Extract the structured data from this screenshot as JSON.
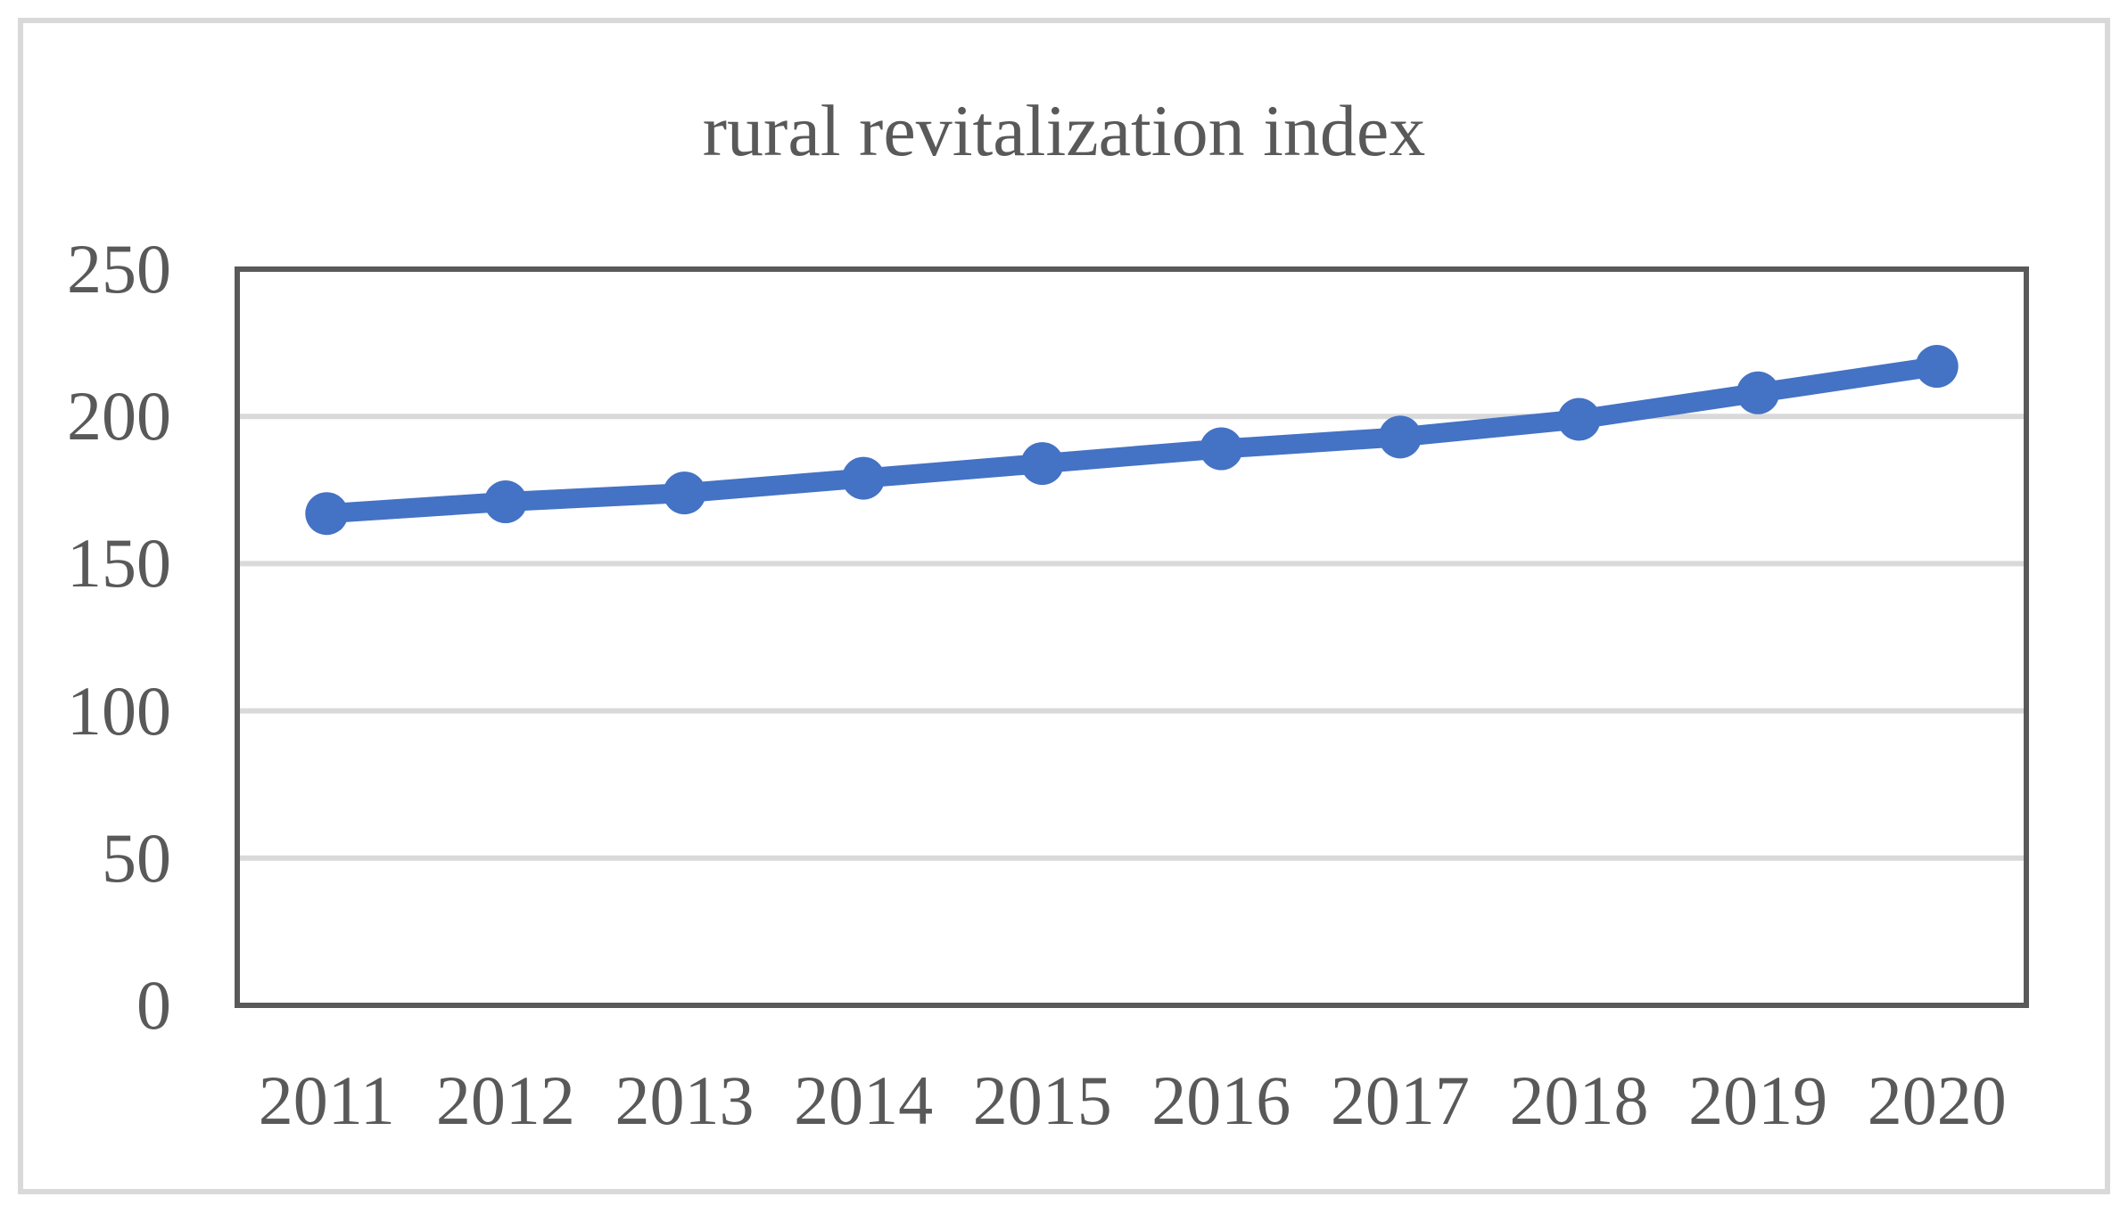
{
  "chart_data": {
    "type": "line",
    "title": "rural revitalization index",
    "categories": [
      "2011",
      "2012",
      "2013",
      "2014",
      "2015",
      "2016",
      "2017",
      "2018",
      "2019",
      "2020"
    ],
    "series": [
      {
        "name": "rural revitalization index",
        "values": [
          167,
          171,
          174,
          179,
          184,
          189,
          193,
          199,
          208,
          217
        ]
      }
    ],
    "xlabel": "",
    "ylabel": "",
    "ylim": [
      0,
      250
    ],
    "y_ticks": [
      0,
      50,
      100,
      150,
      200,
      250
    ],
    "grid": "horizontal-only",
    "legend_position": "none",
    "marker": "circle"
  },
  "colors": {
    "line": "#4472C4",
    "marker": "#4472C4",
    "gridline": "#D9D9D9",
    "plot_border": "#595959",
    "tick_text": "#595959",
    "title_text": "#595959",
    "outer_frame": "#D9D9D9",
    "background": "#FFFFFF"
  }
}
